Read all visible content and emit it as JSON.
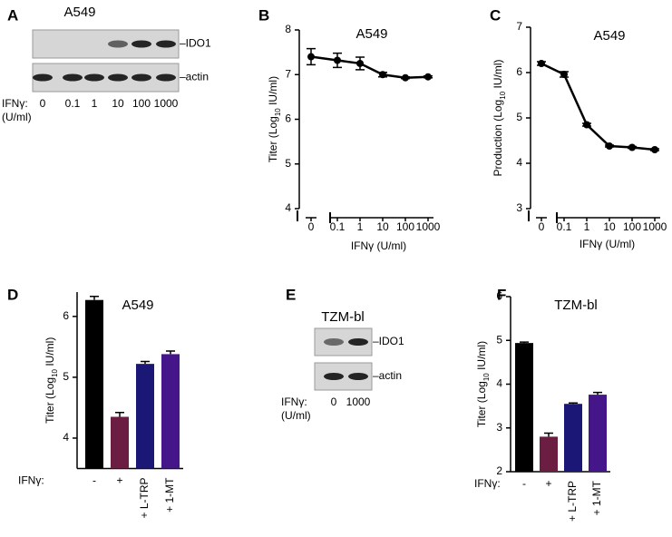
{
  "chart_data": [
    {
      "type": "line",
      "panel_label": "B",
      "title": "A549",
      "ylabel": [
        "Titer  (Log",
        "10",
        " IU/ml)"
      ],
      "xlabel": "IFNγ (U/ml)",
      "x": [
        0,
        0.1,
        1,
        10,
        100,
        1000
      ],
      "values": [
        7.4,
        7.32,
        7.25,
        7.0,
        6.93,
        6.95
      ],
      "errors": [
        0.18,
        0.16,
        0.14,
        0.05,
        0.02,
        0.02
      ],
      "xscale": "log",
      "xbreak": true,
      "xticks": [
        0,
        0.1,
        1,
        10,
        100,
        1000
      ],
      "ylim": [
        4,
        8
      ],
      "yticks": [
        4,
        5,
        6,
        7,
        8
      ],
      "color": "#000000"
    },
    {
      "type": "line",
      "panel_label": "C",
      "title": "A549",
      "ylabel": [
        "Production (Log",
        "10",
        " IU/ml)"
      ],
      "xlabel": "IFNγ (U/ml)",
      "x": [
        0,
        0.1,
        1,
        10,
        100,
        1000
      ],
      "values": [
        6.2,
        5.96,
        4.85,
        4.38,
        4.35,
        4.3
      ],
      "errors": [
        0.04,
        0.06,
        0.03,
        0.02,
        0.02,
        0.02
      ],
      "xscale": "log",
      "xbreak": true,
      "xticks": [
        0,
        0.1,
        1,
        10,
        100,
        1000
      ],
      "ylim": [
        3,
        7
      ],
      "yticks": [
        3,
        4,
        5,
        6,
        7
      ],
      "color": "#000000"
    },
    {
      "type": "bar",
      "panel_label": "D",
      "title": "A549",
      "ylabel": [
        "Titer  (Log",
        "10",
        " IU/ml)"
      ],
      "group_label": "IFNγ:",
      "categories": [
        "-",
        "+",
        "+ L-TRP",
        "+ 1-MT"
      ],
      "values": [
        6.27,
        4.35,
        5.22,
        5.38
      ],
      "errors": [
        0.06,
        0.07,
        0.04,
        0.05
      ],
      "colors": [
        "#000000",
        "#6b1d42",
        "#1b1776",
        "#45168a"
      ],
      "ylim": [
        3.5,
        6.4
      ],
      "yticks": [
        4,
        5,
        6
      ]
    },
    {
      "type": "bar",
      "panel_label": "F",
      "title": "TZM-bl",
      "ylabel": [
        "Titer (Log",
        "10",
        " IU/ml)"
      ],
      "group_label": "IFNγ:",
      "categories": [
        "-",
        "+",
        "+ L-TRP",
        "+ 1-MT"
      ],
      "values": [
        4.94,
        2.8,
        3.55,
        3.76
      ],
      "errors": [
        0.02,
        0.08,
        0.02,
        0.05
      ],
      "colors": [
        "#000000",
        "#6b1d42",
        "#1b1776",
        "#45168a"
      ],
      "ylim": [
        2,
        6
      ],
      "yticks": [
        2,
        3,
        4,
        5,
        6
      ]
    }
  ],
  "blots": [
    {
      "panel_label": "A",
      "title": "A549",
      "bands": [
        "–IDO1",
        "–actin"
      ],
      "group_label": [
        "IFNγ:",
        "(U/ml)"
      ],
      "lanes": [
        "0",
        "0.1",
        "1",
        "10",
        "100",
        "1000"
      ]
    },
    {
      "panel_label": "E",
      "title": "TZM-bl",
      "bands": [
        "–IDO1",
        "–actin"
      ],
      "group_label": [
        "IFNγ:",
        "(U/ml)"
      ],
      "lanes": [
        "0",
        "1000"
      ]
    }
  ]
}
